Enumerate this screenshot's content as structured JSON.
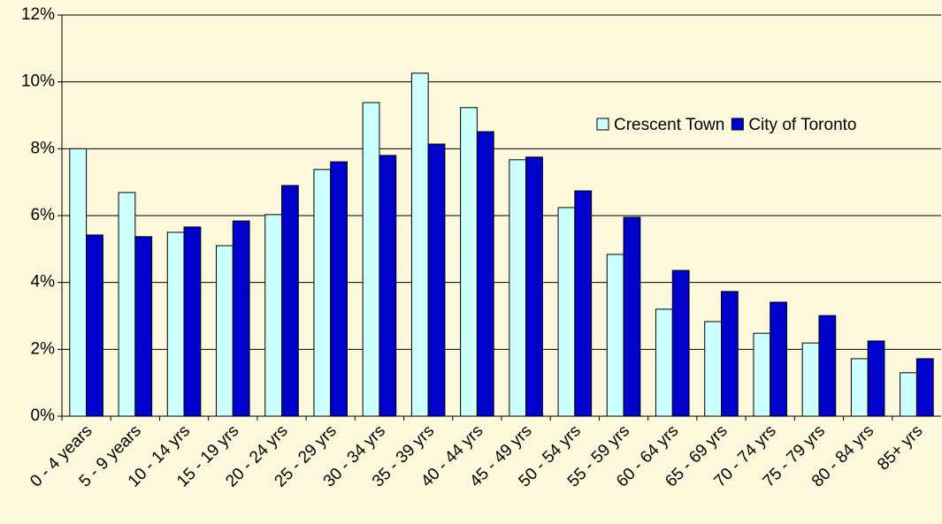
{
  "chart_data": {
    "type": "bar",
    "categories": [
      "0 - 4 years",
      "5 - 9 years",
      "10 - 14 yrs",
      "15 - 19 yrs",
      "20 - 24 yrs",
      "25 - 29 yrs",
      "30 - 34 yrs",
      "35 - 39 yrs",
      "40 - 44 yrs",
      "45 - 49 yrs",
      "50 - 54 yrs",
      "55 - 59 yrs",
      "60 - 64 yrs",
      "65 - 69 yrs",
      "70 - 74 yrs",
      "75 - 79 yrs",
      "80 - 84 yrs",
      "85+ yrs"
    ],
    "series": [
      {
        "name": "Crescent Town",
        "color": "#ccffff",
        "values": [
          8.0,
          6.69,
          5.5,
          5.1,
          6.03,
          7.38,
          9.38,
          10.26,
          9.23,
          7.67,
          6.24,
          4.84,
          3.2,
          2.83,
          2.48,
          2.19,
          1.72,
          1.3
        ]
      },
      {
        "name": "City of Toronto",
        "color": "#0000cc",
        "values": [
          5.42,
          5.37,
          5.66,
          5.84,
          6.9,
          7.61,
          7.8,
          8.14,
          8.51,
          7.75,
          6.74,
          5.95,
          4.36,
          3.73,
          3.41,
          3.01,
          2.25,
          1.72
        ]
      }
    ],
    "ylim": [
      0,
      12
    ],
    "yticks": [
      {
        "value": 0,
        "label": "0%"
      },
      {
        "value": 2,
        "label": "2%"
      },
      {
        "value": 4,
        "label": "4%"
      },
      {
        "value": 6,
        "label": "6%"
      },
      {
        "value": 8,
        "label": "8%"
      },
      {
        "value": 10,
        "label": "10%"
      },
      {
        "value": 12,
        "label": "12%"
      }
    ],
    "grid": true,
    "legend": "right"
  }
}
